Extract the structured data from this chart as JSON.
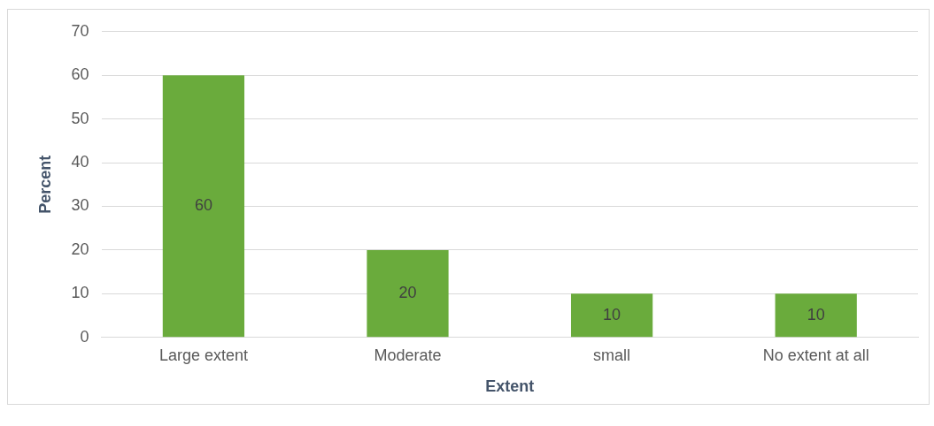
{
  "chart_data": {
    "type": "bar",
    "xlabel": "Extent",
    "ylabel": "Percent",
    "categories": [
      "Large extent",
      "Moderate",
      "small",
      "No extent at all"
    ],
    "values": [
      60,
      20,
      10,
      10
    ],
    "color": "#6aab3c",
    "ylim": [
      0,
      70
    ],
    "yticks": [
      0,
      10,
      20,
      30,
      40,
      50,
      60,
      70
    ],
    "grid": "y",
    "data_labels": true,
    "legend": false
  }
}
